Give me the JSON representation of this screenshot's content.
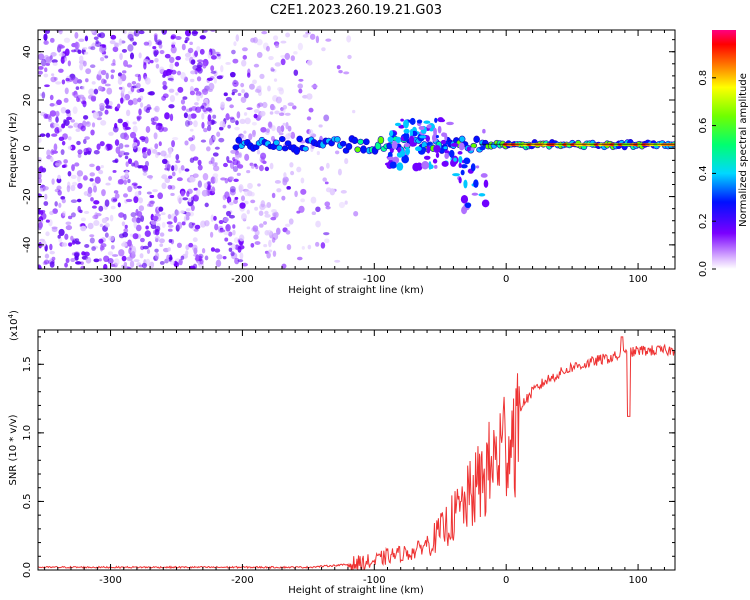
{
  "title": "C2E1.2023.260.19.21.G03",
  "chart_data": [
    {
      "type": "heatmap",
      "xlabel": "Height of straight line (km)",
      "ylabel": "Frequency (Hz)",
      "xlim": [
        -355,
        128
      ],
      "ylim": [
        -50,
        49
      ],
      "xticks": [
        -300,
        -200,
        -100,
        0,
        100
      ],
      "yticks": [
        -40,
        -20,
        0,
        20,
        40
      ],
      "colorbar": {
        "label": "Normalized spectral amplitude",
        "range": [
          0.0,
          1.0
        ],
        "ticks": [
          "0.0",
          "0.2",
          "0.4",
          "0.6",
          "0.8"
        ],
        "colormap": "rainbow"
      },
      "features": {
        "noise_region_x": [
          -355,
          -120
        ],
        "main_band_center_hz": 1.5,
        "main_band_start_x": -205,
        "strongest_band_x": [
          0,
          128
        ]
      }
    },
    {
      "type": "line",
      "xlabel": "Height of straight line (km)",
      "ylabel": "SNR (10 * v/v)",
      "scale_label": "(x10",
      "scale_exp": "4",
      "scale_close": ")",
      "xlim": [
        -355,
        128
      ],
      "ylim": [
        0,
        1.75
      ],
      "xticks": [
        -300,
        -200,
        -100,
        0,
        100
      ],
      "yticks": [
        "0.0",
        "0.5",
        "1.0",
        "1.5"
      ],
      "color": "#ee3333",
      "series": [
        {
          "x": [
            -355,
            -300,
            -250,
            -200,
            -150,
            -120,
            -100,
            -90,
            -80,
            -70,
            -60,
            -50,
            -40,
            -30,
            -20,
            -10,
            0,
            10,
            20,
            30,
            40,
            50,
            60,
            70,
            80,
            90,
            100,
            110,
            128
          ],
          "values": [
            0.02,
            0.02,
            0.02,
            0.02,
            0.02,
            0.04,
            0.06,
            0.1,
            0.12,
            0.13,
            0.2,
            0.3,
            0.42,
            0.55,
            0.7,
            0.85,
            1.05,
            1.18,
            1.3,
            1.38,
            1.43,
            1.48,
            1.5,
            1.53,
            1.55,
            1.57,
            1.6,
            1.6,
            1.6
          ]
        }
      ]
    }
  ]
}
